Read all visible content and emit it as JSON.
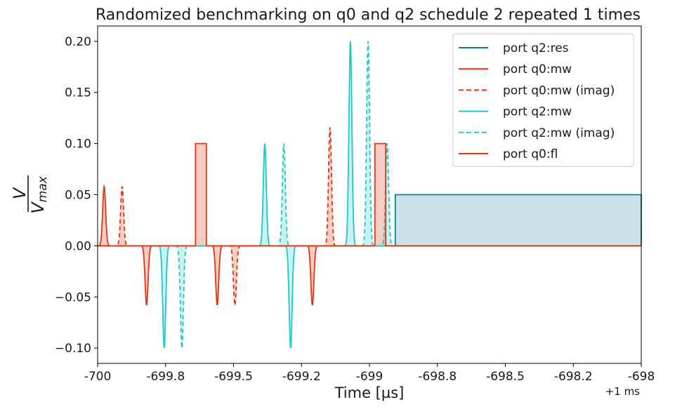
{
  "chart_data": {
    "type": "line",
    "title": "Randomized benchmarking on q0 and q2 schedule 2 repeated 1 times",
    "xlabel": "Time [µs]",
    "ylabel_num": "V",
    "ylabel_den": "V",
    "ylabel_den_sub": "max",
    "x_offset_label": "+1 ms",
    "xlim": [
      -700.0,
      -698.0
    ],
    "ylim": [
      -0.115,
      0.215
    ],
    "x_ticks": [
      -700.0,
      -699.75,
      -699.5,
      -699.25,
      -699.0,
      -698.75,
      -698.5,
      -698.25,
      -698.0
    ],
    "x_tick_labels": [
      "-700",
      "-699.8",
      "-699.5",
      "-699.2",
      "-699",
      "-698.8",
      "-698.5",
      "-698.2",
      "-698"
    ],
    "y_ticks": [
      -0.1,
      -0.05,
      0.0,
      0.05,
      0.1,
      0.15,
      0.2
    ],
    "y_tick_labels": [
      "−0.10",
      "−0.05",
      "0.00",
      "0.05",
      "0.10",
      "0.15",
      "0.20"
    ],
    "grid": false,
    "legend_position": "top-right",
    "series": [
      {
        "name": "port q2:res",
        "color": "#0e7c96",
        "style": "solid",
        "kind": "flat",
        "segments": [
          {
            "start": -698.905,
            "end": -698.0,
            "value": 0.05
          }
        ]
      },
      {
        "name": "port q0:mw",
        "color": "#e63312",
        "style": "solid",
        "kind": "gaussian",
        "pulses": [
          {
            "center": -699.976,
            "amp": 0.058
          },
          {
            "center": -699.82,
            "amp": -0.058
          },
          {
            "center": -699.56,
            "amp": -0.058
          },
          {
            "center": -699.21,
            "amp": -0.058
          }
        ]
      },
      {
        "name": "port q0:mw (imag)",
        "color": "#e63312",
        "style": "dashed",
        "kind": "gaussian",
        "pulses": [
          {
            "center": -699.91,
            "amp": 0.058
          },
          {
            "center": -699.495,
            "amp": -0.058
          },
          {
            "center": -699.145,
            "amp": 0.116
          }
        ]
      },
      {
        "name": "port q2:mw",
        "color": "#22c7c7",
        "style": "solid",
        "kind": "gaussian",
        "pulses": [
          {
            "center": -699.755,
            "amp": -0.1
          },
          {
            "center": -699.385,
            "amp": 0.1
          },
          {
            "center": -699.29,
            "amp": -0.1
          },
          {
            "center": -699.07,
            "amp": 0.2
          }
        ]
      },
      {
        "name": "port q2:mw (imag)",
        "color": "#22c7c7",
        "style": "dashed",
        "kind": "gaussian",
        "pulses": [
          {
            "center": -699.69,
            "amp": -0.1
          },
          {
            "center": -699.315,
            "amp": 0.1
          },
          {
            "center": -699.005,
            "amp": 0.2
          },
          {
            "center": -698.935,
            "amp": 0.1
          }
        ]
      },
      {
        "name": "port q0:fl",
        "color": "#e63312",
        "style": "solid",
        "kind": "flat",
        "segments": [
          {
            "start": -699.64,
            "end": -699.6,
            "value": 0.1
          },
          {
            "start": -698.98,
            "end": -698.94,
            "value": 0.1
          }
        ]
      }
    ]
  }
}
